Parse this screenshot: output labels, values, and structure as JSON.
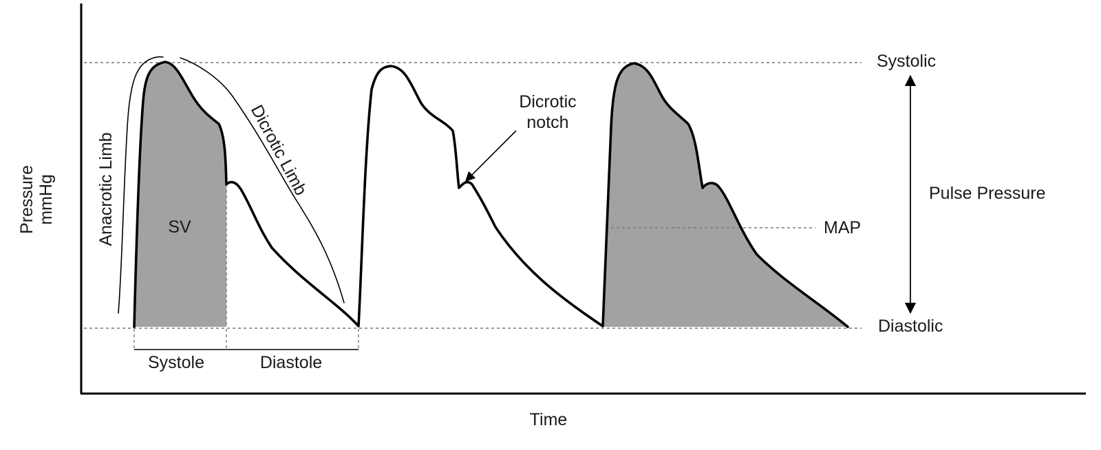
{
  "axes": {
    "y_label_line1": "Pressure",
    "y_label_line2": "mmHg",
    "x_label": "Time"
  },
  "levels": {
    "systolic": "Systolic",
    "diastolic": "Diastolic",
    "map": "MAP",
    "pulse_pressure": "Pulse Pressure"
  },
  "annotations": {
    "anacrotic_limb": "Anacrotic Limb",
    "dicrotic_limb": "Dicrotic Limb",
    "dicrotic_notch_line1": "Dicrotic",
    "dicrotic_notch_line2": "notch",
    "sv": "SV",
    "systole": "Systole",
    "diastole": "Diastole"
  },
  "colors": {
    "waveform": "#000000",
    "shaded_area": "#a2a2a2",
    "guide_lines": "#777777",
    "text": "#1a1a1a"
  }
}
